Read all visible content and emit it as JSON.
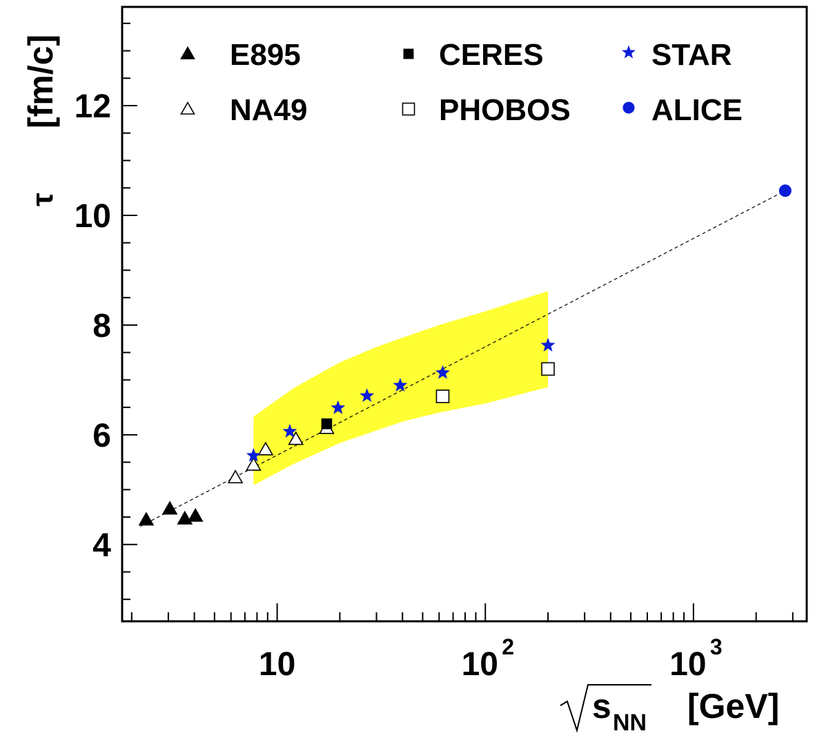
{
  "chart_data": {
    "type": "scatter",
    "xscale": "log",
    "xlim": [
      1.8,
      3500
    ],
    "ylim": [
      2.6,
      13.8
    ],
    "grid": false,
    "legend_placement": "top",
    "xlabel": "[GeV]",
    "xlabel_symbol": "s",
    "xlabel_subscript": "NN",
    "ylabel": "[fm/c]",
    "ylabel_symbol": "τ",
    "y_ticks": [
      4,
      6,
      8,
      10,
      12
    ],
    "x_ticks": [
      {
        "value": 10,
        "base": "10",
        "exp": ""
      },
      {
        "value": 100,
        "base": "10",
        "exp": "2"
      },
      {
        "value": 1000,
        "base": "10",
        "exp": "3"
      }
    ],
    "series": [
      {
        "name": "E895",
        "marker": "triangle-filled",
        "color": "#000000",
        "x": [
          2.35,
          3.05,
          3.6,
          4.05
        ],
        "y": [
          4.45,
          4.65,
          4.47,
          4.52
        ]
      },
      {
        "name": "NA49",
        "marker": "triangle-open",
        "color": "#000000",
        "x": [
          6.3,
          7.7,
          8.8,
          12.3,
          17.3
        ],
        "y": [
          5.22,
          5.45,
          5.73,
          5.92,
          6.12
        ]
      },
      {
        "name": "CERES",
        "marker": "square-filled",
        "color": "#000000",
        "x": [
          17.3
        ],
        "y": [
          6.2
        ]
      },
      {
        "name": "PHOBOS",
        "marker": "square-open",
        "color": "#000000",
        "x": [
          62.4,
          200
        ],
        "y": [
          6.7,
          7.2
        ]
      },
      {
        "name": "STAR",
        "marker": "star",
        "color": "#0b1ed8",
        "x": [
          7.7,
          11.5,
          19.6,
          27,
          39,
          62.4,
          200
        ],
        "y": [
          5.62,
          6.06,
          6.49,
          6.71,
          6.9,
          7.13,
          7.63
        ]
      },
      {
        "name": "ALICE",
        "marker": "circle-filled",
        "color": "#0b1ed8",
        "x": [
          2760
        ],
        "y": [
          10.45
        ]
      }
    ],
    "band": {
      "color": "#ffff33",
      "x": [
        7.7,
        12,
        20,
        30,
        40,
        62.4,
        100,
        200
      ],
      "upper": [
        6.33,
        6.85,
        7.32,
        7.6,
        7.77,
        8.02,
        8.25,
        8.62
      ],
      "lower": [
        5.08,
        5.47,
        5.85,
        6.08,
        6.24,
        6.42,
        6.57,
        6.87
      ]
    },
    "fit_line": {
      "style": "dashed",
      "color": "#000000",
      "points": [
        {
          "x": 2.2,
          "y": 4.33
        },
        {
          "x": 2760,
          "y": 10.45
        }
      ]
    }
  }
}
